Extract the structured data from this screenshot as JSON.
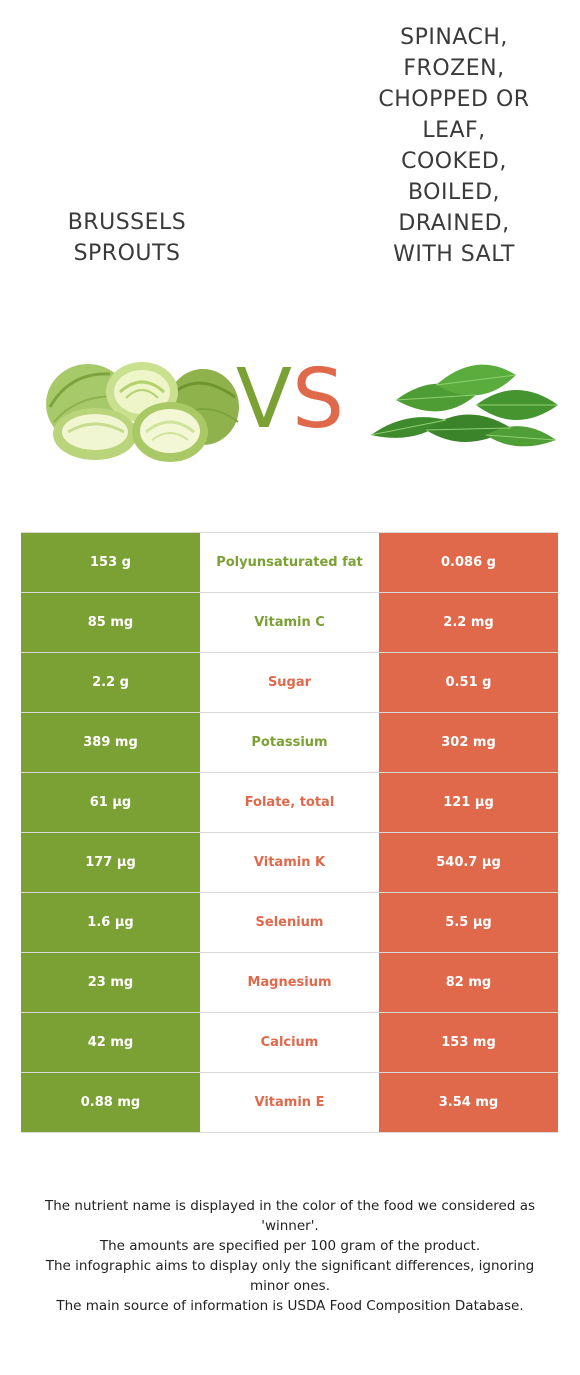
{
  "foods": {
    "left": {
      "name": "Brussels sprouts",
      "color": "#7ba135",
      "image_icon": "brussels-sprouts-image"
    },
    "right": {
      "name": "Spinach, frozen, chopped or leaf, cooked, boiled, drained, with salt",
      "color": "#e0694b",
      "image_icon": "spinach-leaves-image"
    }
  },
  "vs": {
    "v": "V",
    "s": "S"
  },
  "nutrients": [
    {
      "name": "Polyunsaturated fat",
      "left": "153 g",
      "right": "0.086 g",
      "winner": "left"
    },
    {
      "name": "Vitamin C",
      "left": "85 mg",
      "right": "2.2 mg",
      "winner": "left"
    },
    {
      "name": "Sugar",
      "left": "2.2 g",
      "right": "0.51 g",
      "winner": "right"
    },
    {
      "name": "Potassium",
      "left": "389 mg",
      "right": "302 mg",
      "winner": "left"
    },
    {
      "name": "Folate, total",
      "left": "61 µg",
      "right": "121 µg",
      "winner": "right"
    },
    {
      "name": "Vitamin K",
      "left": "177 µg",
      "right": "540.7 µg",
      "winner": "right"
    },
    {
      "name": "Selenium",
      "left": "1.6 µg",
      "right": "5.5 µg",
      "winner": "right"
    },
    {
      "name": "Magnesium",
      "left": "23 mg",
      "right": "82 mg",
      "winner": "right"
    },
    {
      "name": "Calcium",
      "left": "42 mg",
      "right": "153 mg",
      "winner": "right"
    },
    {
      "name": "Vitamin E",
      "left": "0.88 mg",
      "right": "3.54 mg",
      "winner": "right"
    }
  ],
  "footnote": [
    "The nutrient name is displayed in the color of the food we considered as 'winner'.",
    "The amounts are specified per 100 gram of the product.",
    "The infographic aims to display only the significant differences, ignoring minor ones.",
    "The main source of information is USDA Food Composition Database."
  ]
}
